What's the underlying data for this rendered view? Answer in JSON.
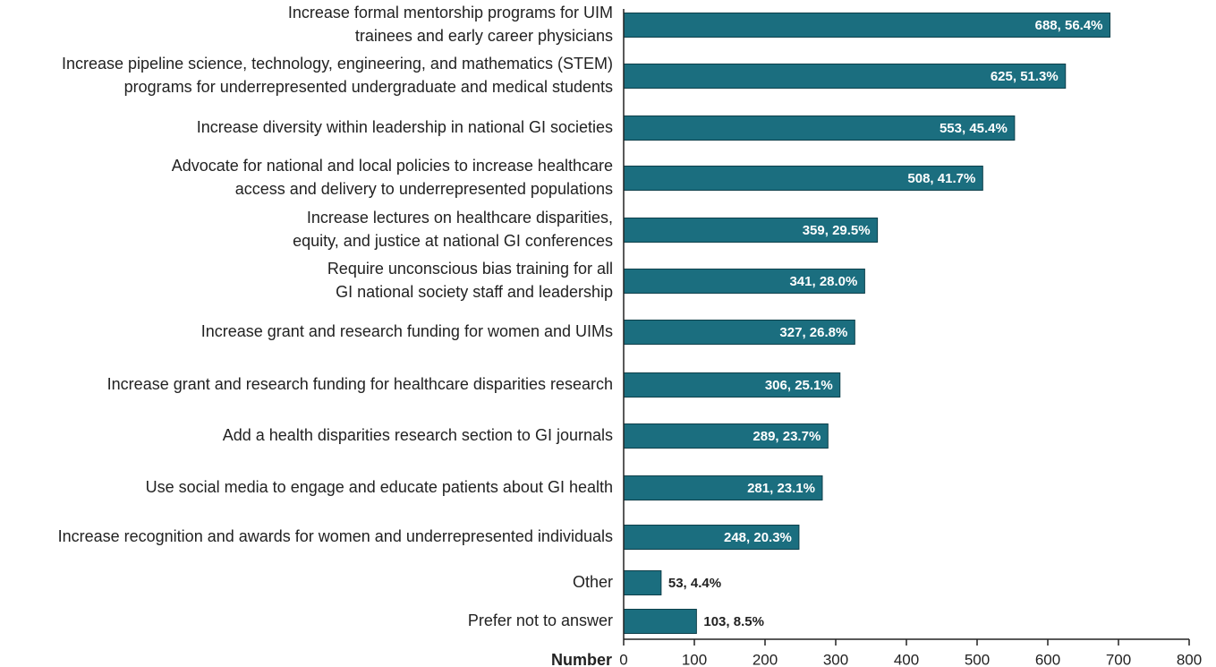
{
  "chart_data": {
    "type": "bar",
    "orientation": "horizontal",
    "x_label": "Number",
    "categories": [
      [
        "Increase formal mentorship programs for UIM",
        "trainees and early career physicians"
      ],
      [
        "Increase pipeline science, technology, engineering, and mathematics (STEM)",
        "programs for underrepresented undergraduate and medical students"
      ],
      [
        "Increase diversity within leadership in national GI societies"
      ],
      [
        "Advocate for national and local policies to increase healthcare",
        "access and delivery to underrepresented populations"
      ],
      [
        "Increase lectures on healthcare disparities,",
        "equity, and justice at national GI conferences"
      ],
      [
        "Require unconscious bias training for all",
        "GI national society staff and leadership"
      ],
      [
        "Increase grant and research funding for women and UIMs"
      ],
      [
        "Increase grant and research funding for healthcare disparities research"
      ],
      [
        "Add a health disparities research section to GI journals"
      ],
      [
        "Use social media to engage and educate patients about GI health"
      ],
      [
        "Increase recognition and awards for women and underrepresented individuals"
      ],
      [
        "Other"
      ],
      [
        "Prefer not to answer"
      ]
    ],
    "values": [
      688,
      625,
      553,
      508,
      359,
      341,
      327,
      306,
      289,
      281,
      248,
      53,
      103
    ],
    "value_labels": [
      "688, 56.4%",
      "625, 51.3%",
      "553, 45.4%",
      "508, 41.7%",
      "359, 29.5%",
      "341, 28.0%",
      "327, 26.8%",
      "306, 25.1%",
      "289, 23.7%",
      "281, 23.1%",
      "248, 20.3%",
      "53, 4.4%",
      "103, 8.5%"
    ],
    "color": "#1b6e7f",
    "xlim": [
      0,
      800
    ],
    "xticks": [
      0,
      100,
      200,
      300,
      400,
      500,
      600,
      700,
      800
    ]
  }
}
